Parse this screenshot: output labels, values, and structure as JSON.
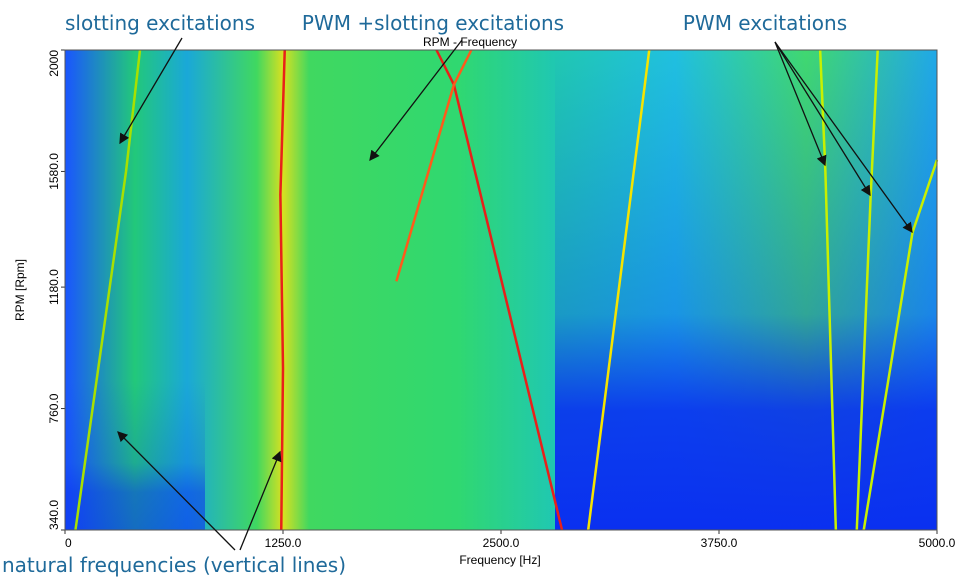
{
  "chart_data": {
    "type": "line",
    "title": "RPM - Frequency",
    "xlabel": "Frequency [Hz]",
    "ylabel": "RPM [Rpm]",
    "xlim": [
      0,
      5000
    ],
    "xticks": [
      0,
      {
        "value": 1250,
        "label": "1250.0"
      },
      {
        "value": 2500,
        "label": "2500.0"
      },
      {
        "value": 3750,
        "label": "3750.0"
      },
      {
        "value": 5000,
        "label": "5000.0"
      }
    ],
    "ylim": [
      340,
      2000
    ],
    "yticks": [
      {
        "value": 340,
        "label": "340.0"
      },
      {
        "value": 760,
        "label": "760.0"
      },
      {
        "value": 1180,
        "label": "1180.0"
      },
      {
        "value": 1580,
        "label": "1580.0"
      },
      2000
    ],
    "series": [
      {
        "color": "#e8201a",
        "x": [
          1240,
          1250,
          1235,
          1260
        ],
        "values": [
          340,
          900,
          1500,
          2000
        ]
      },
      {
        "color": "#e8201a",
        "x": [
          2130,
          2230,
          2850
        ],
        "values": [
          2000,
          1880,
          340
        ]
      },
      {
        "color": "#ff5a1a",
        "x": [
          1900,
          2230,
          2330
        ],
        "values": [
          1200,
          1880,
          2000
        ]
      },
      {
        "color": "#f5e400",
        "x": [
          3000,
          3350
        ],
        "values": [
          340,
          2000
        ]
      },
      {
        "color": "#a8e000",
        "x": [
          60,
          350,
          430
        ],
        "values": [
          340,
          1580,
          2000
        ]
      },
      {
        "color": "#c8f000",
        "x": [
          4420,
          4360,
          4330
        ],
        "values": [
          340,
          1580,
          2000
        ]
      },
      {
        "color": "#c8f000",
        "x": [
          4540,
          4620,
          4660
        ],
        "values": [
          340,
          1500,
          2000
        ]
      },
      {
        "color": "#c8f000",
        "x": [
          4580,
          4860,
          5000
        ],
        "values": [
          340,
          1370,
          1620
        ]
      }
    ],
    "annotations": [
      "slotting excitations",
      "PWM +slotting excitations",
      "PWM excitations",
      "natural frequencies (vertical lines)"
    ]
  }
}
